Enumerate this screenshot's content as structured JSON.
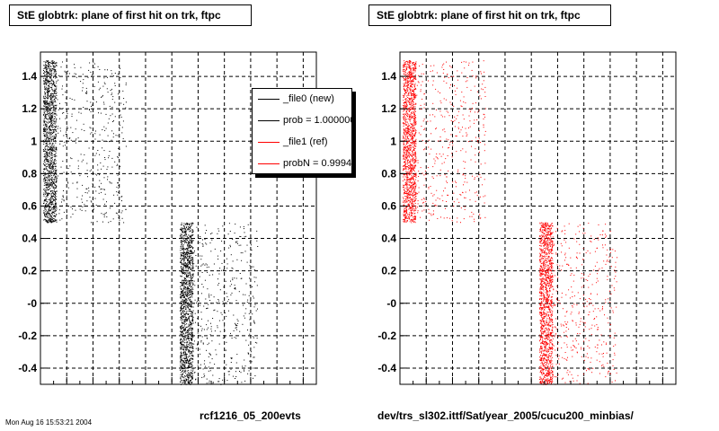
{
  "left_panel": {
    "title": "StE globtrk: plane of first hit on trk, ftpc",
    "footer": "rcf1216_05_200evts"
  },
  "right_panel": {
    "title": "StE globtrk: plane of first hit on trk, ftpc",
    "footer": "dev/trs_sl302.ittf/Sat/year_2005/cucu200_minbias/"
  },
  "corner_stamp": "Mon Aug 16 15:53:21 2004",
  "legend": {
    "placement": "top-right",
    "entries": [
      {
        "label": "_file0 (new)",
        "color": "#000000"
      },
      {
        "label": "prob = 1.000000",
        "color": "#000000"
      },
      {
        "label": "_file1 (ref)",
        "color": "#ff0000"
      },
      {
        "label": "probN = 0.999491",
        "color": "#ff0000"
      }
    ]
  },
  "chart_data": [
    {
      "type": "scatter",
      "title": "StE globtrk: plane of first hit on trk, ftpc",
      "xlabel": "rcf1216_05_200evts",
      "ylabel": "",
      "xlim": [
        0,
        21
      ],
      "ylim": [
        -0.5,
        1.55
      ],
      "x_ticks": [
        "2",
        "4",
        "6",
        "8",
        "10",
        "12",
        "14",
        "16",
        "18",
        "20"
      ],
      "y_ticks": [
        "-0.4",
        "-0.2",
        "-0",
        "0.2",
        "0.4",
        "0.6",
        "0.8",
        "1",
        "1.2",
        "1.4"
      ],
      "grid": true,
      "marker_color": "#000000",
      "clusters": [
        {
          "x_range": [
            0.2,
            1.2
          ],
          "y_range": [
            0.5,
            1.5
          ],
          "density": "high"
        },
        {
          "x_range": [
            1.2,
            6.5
          ],
          "y_range": [
            0.5,
            1.5
          ],
          "density": "low"
        },
        {
          "x_range": [
            10.6,
            11.6
          ],
          "y_range": [
            -0.5,
            0.5
          ],
          "density": "high"
        },
        {
          "x_range": [
            11.6,
            16.5
          ],
          "y_range": [
            -0.5,
            0.5
          ],
          "density": "low"
        }
      ]
    },
    {
      "type": "scatter",
      "title": "StE globtrk: plane of first hit on trk, ftpc",
      "xlabel": "dev/trs_sl302.ittf/Sat/year_2005/cucu200_minbias/",
      "ylabel": "",
      "xlim": [
        0,
        21
      ],
      "ylim": [
        -0.5,
        1.55
      ],
      "x_ticks": [
        "2",
        "4",
        "6",
        "8",
        "10",
        "12",
        "14",
        "16",
        "18",
        "20"
      ],
      "y_ticks": [
        "-0.4",
        "-0.2",
        "-0",
        "0.2",
        "0.4",
        "0.6",
        "0.8",
        "1",
        "1.2",
        "1.4"
      ],
      "grid": true,
      "marker_color": "#ff0000",
      "clusters": [
        {
          "x_range": [
            0.2,
            1.2
          ],
          "y_range": [
            0.5,
            1.5
          ],
          "density": "high"
        },
        {
          "x_range": [
            1.2,
            6.5
          ],
          "y_range": [
            0.5,
            1.5
          ],
          "density": "low"
        },
        {
          "x_range": [
            10.6,
            11.6
          ],
          "y_range": [
            -0.5,
            0.5
          ],
          "density": "high"
        },
        {
          "x_range": [
            11.6,
            16.5
          ],
          "y_range": [
            -0.5,
            0.5
          ],
          "density": "low"
        }
      ]
    }
  ]
}
